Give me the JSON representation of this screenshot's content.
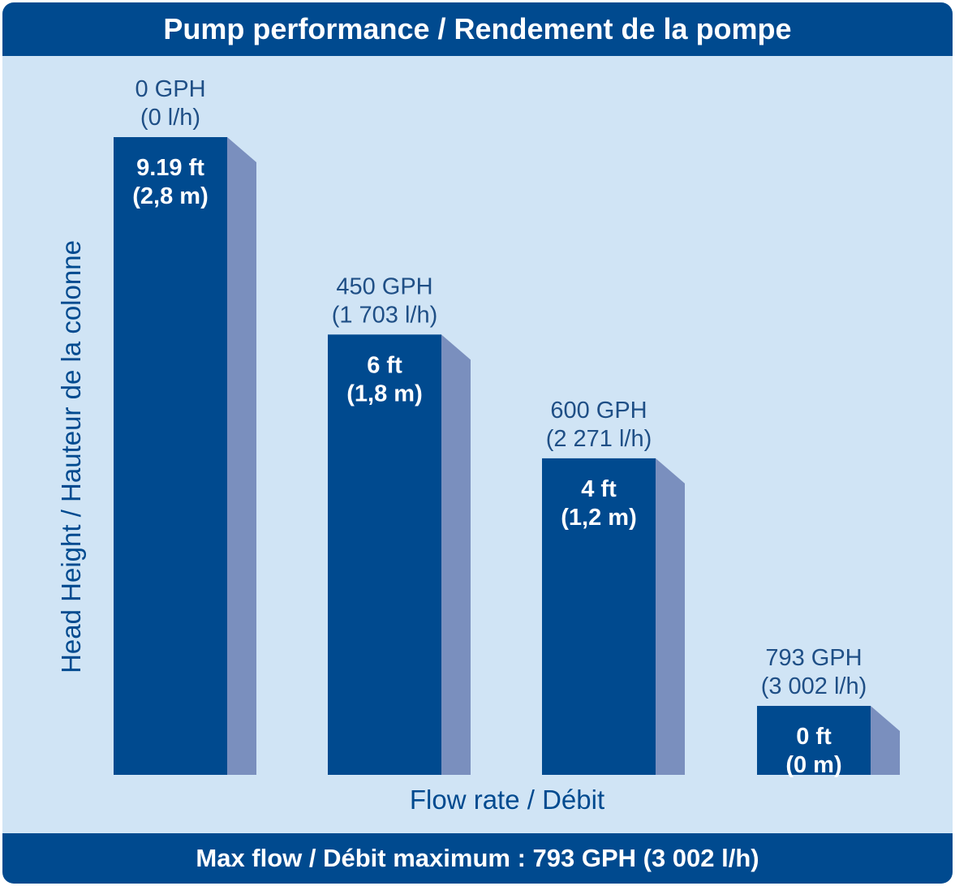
{
  "header": {
    "title": "Pump performance / Rendement de la pompe"
  },
  "footer": {
    "text": "Max flow / Débit maximum : 793 GPH (3 002 l/h)"
  },
  "colors": {
    "bar": "#004a8f",
    "bar_shadow": "#7a8fbe",
    "background": "#d0e4f5",
    "band": "#004a8f"
  },
  "chart_data": {
    "type": "bar",
    "title": "Pump performance / Rendement de la pompe",
    "xlabel": "Flow rate / Débit",
    "ylabel": "Head Height / Hauteur de la colonne",
    "categories": [
      {
        "flow": "0 GPH",
        "flow_metric": "(0 l/h)",
        "head": "9.19 ft",
        "head_metric": "(2,8 m)"
      },
      {
        "flow": "450 GPH",
        "flow_metric": "(1 703 l/h)",
        "head": "6 ft",
        "head_metric": "(1,8 m)"
      },
      {
        "flow": "600 GPH",
        "flow_metric": "(2 271 l/h)",
        "head": "4 ft",
        "head_metric": "(1,2 m)"
      },
      {
        "flow": "793 GPH",
        "flow_metric": "(3 002 l/h)",
        "head": "0 ft",
        "head_metric": "(0 m)"
      }
    ],
    "x": [
      0,
      450,
      600,
      793
    ],
    "values": [
      9.19,
      6,
      4,
      0
    ],
    "units": "ft",
    "grid": false,
    "legend": "none"
  }
}
